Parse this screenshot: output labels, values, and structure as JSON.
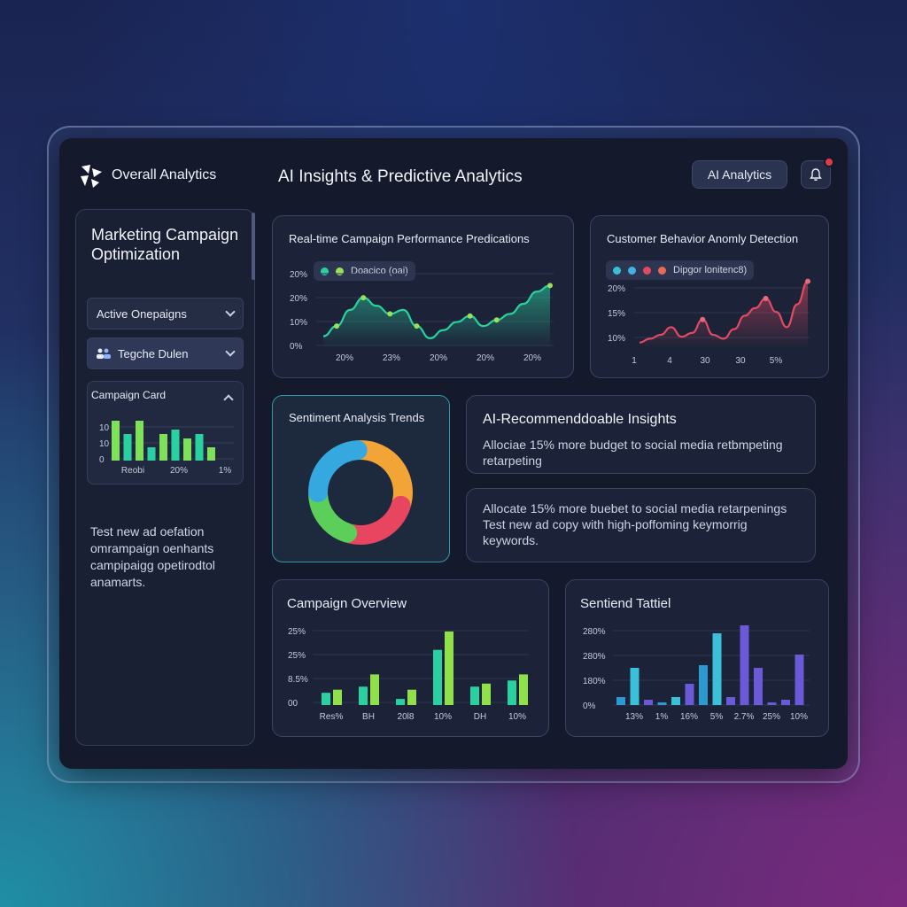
{
  "header": {
    "brand": "Overall Analytics",
    "title": "AI Insights & Predictive Analytics",
    "ai_button": "AI Analytics",
    "notification_icon": "bell-icon",
    "colors": {
      "accent": "#2ad1a0",
      "alert": "#e23a4a"
    }
  },
  "sidebar": {
    "title": "Marketing Campaign Optimization",
    "dropdown_1": "Active Onepaigns",
    "dropdown_2": "Tegche Dulen",
    "campaign_card": {
      "title": "Campaign Card",
      "yticks": [
        "10",
        "10",
        "0"
      ],
      "xticks": [
        "Reobi",
        "20%",
        "1%"
      ],
      "values": [
        9,
        6,
        9,
        3,
        6,
        7,
        5,
        6,
        3
      ],
      "max": 10
    },
    "note": "Test new ad oefation omrampaign oenhants campipaigg opetirodtol anamarts."
  },
  "realtime": {
    "title": "Real-time Campaign Performance Predications",
    "legend": "Doacico (oai)",
    "yticks": [
      "20%",
      "20%",
      "10%",
      "0%"
    ],
    "xticks": [
      "20%",
      "23%",
      "20%",
      "20%",
      "20%"
    ],
    "chart_data": {
      "type": "area",
      "values": [
        5,
        10,
        18,
        24,
        20,
        16,
        18,
        10,
        4,
        8,
        12,
        15,
        10,
        13,
        16,
        21,
        27,
        30
      ],
      "ylim": [
        0,
        35
      ]
    }
  },
  "anomaly": {
    "title": "Customer Behavior Anomly Detection",
    "legend": "Dipgor lonitenc8)",
    "yticks": [
      "20%",
      "15%",
      "10%"
    ],
    "xticks": [
      "1",
      "4",
      "30",
      "30",
      "5%"
    ],
    "chart_data": {
      "type": "area",
      "values": [
        2,
        4,
        6,
        10,
        5,
        7,
        14,
        6,
        4,
        9,
        16,
        20,
        25,
        18,
        10,
        22,
        34
      ],
      "ylim": [
        0,
        38
      ]
    }
  },
  "sentiment": {
    "title": "Sentiment Analysis Trends",
    "chart_data": {
      "type": "pie",
      "values": [
        30,
        25,
        20,
        25
      ],
      "colors": [
        "#f2a436",
        "#e74560",
        "#5ccf5a",
        "#36a8e0"
      ]
    }
  },
  "insights": [
    {
      "title": "AI-Recommenddoable Insights",
      "text": "Allociae 15% more budget to social media retbmpeting retarpeting"
    },
    {
      "text": "Allocate 15% more buebet to social media retarpenings Test new ad copy with high-poffoming keymorrig keywords."
    }
  ],
  "campaign_overview": {
    "title": "Campaign Overview",
    "yticks": [
      "25%",
      "25%",
      "8.5%",
      "00"
    ],
    "xticks": [
      "Res%",
      "BH",
      "20l8",
      "10%",
      "DH",
      "10%"
    ],
    "chart_data": {
      "type": "bar",
      "pairs": [
        [
          4,
          5
        ],
        [
          6,
          10
        ],
        [
          2,
          5
        ],
        [
          18,
          24
        ],
        [
          6,
          7
        ],
        [
          8,
          10
        ]
      ],
      "ymax": 26
    }
  },
  "sentiend": {
    "title": "Sentiend Tattiel",
    "yticks": [
      "280%",
      "280%",
      "180%",
      "0%"
    ],
    "xticks": [
      "13%",
      "1%",
      "16%",
      "5%",
      "2.7%",
      "25%",
      "10%"
    ],
    "chart_data": {
      "type": "bar",
      "values": [
        3,
        14,
        2,
        1,
        3,
        8,
        15,
        27,
        3,
        30,
        14,
        1,
        2,
        19
      ],
      "ymax": 32
    }
  }
}
